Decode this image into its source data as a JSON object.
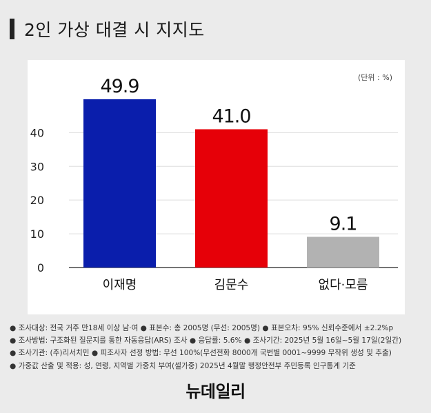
{
  "title": "2인 가상 대결 시 지지도",
  "unit_label": "(단위 : %)",
  "chart_data": {
    "type": "bar",
    "categories": [
      "이재명",
      "김문수",
      "없다·모름"
    ],
    "values": [
      49.9,
      41.0,
      9.1
    ],
    "value_labels": [
      "49.9",
      "41.0",
      "9.1"
    ],
    "colors": [
      "#0a1eac",
      "#e60008",
      "#b2b2b2"
    ],
    "ylim": [
      0,
      55
    ],
    "yticks": [
      0,
      10,
      20,
      30,
      40
    ],
    "grid": true,
    "legend": "none",
    "title": "",
    "xlabel": "",
    "ylabel": ""
  },
  "footnotes": [
    "● 조사대상: 전국 거주 만18세 이상 남·여 ● 표본수: 총 2005명 (무선: 2005명) ● 표본오차: 95% 신뢰수준에서 ±2.2%p",
    "● 조사방법: 구조화된 질문지를 통한 자동응답(ARS) 조사 ● 응답률: 5.6% ● 조사기간: 2025년 5월 16일~5월 17일(2일간)",
    "● 조사기관: (주)리서치민 ● 피조사자 선정 방법: 무선 100%(무선전화 8000개 국번별 0001~9999 무작위 생성 및 추출)",
    "● 가중값 산출 및 적용: 성, 연령, 지역별 가중치 부여(셀가중) 2025년 4월말 행정안전부 주민등록 인구통계 기준"
  ],
  "logo": "뉴데일리"
}
